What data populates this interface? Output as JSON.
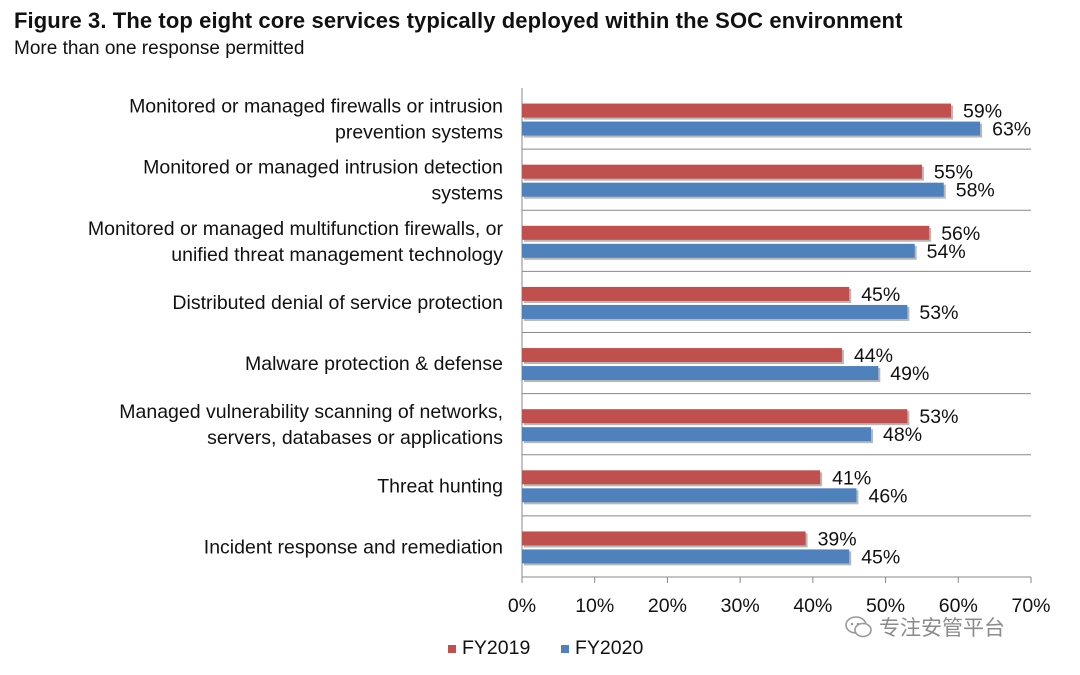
{
  "title": "Figure 3. The top eight core services typically deployed within the SOC environment",
  "subtitle": "More than one response permitted",
  "watermark": "专注安管平台",
  "colors": {
    "fy2019": "#c0504d",
    "fy2020": "#4f81bd"
  },
  "chart_data": {
    "type": "bar",
    "orientation": "horizontal",
    "title": "Figure 3. The top eight core services typically deployed within the SOC environment",
    "subtitle": "More than one response permitted",
    "categories": [
      [
        "Monitored or managed firewalls or intrusion",
        "prevention systems"
      ],
      [
        "Monitored or managed intrusion detection",
        "systems"
      ],
      [
        "Monitored or managed multifunction firewalls, or",
        "unified threat management technology"
      ],
      [
        "Distributed denial of service protection"
      ],
      [
        "Malware protection & defense"
      ],
      [
        "Managed vulnerability scanning of networks,",
        "servers, databases or applications"
      ],
      [
        "Threat hunting"
      ],
      [
        "Incident response and remediation"
      ]
    ],
    "series": [
      {
        "name": "FY2019",
        "values": [
          59,
          55,
          56,
          45,
          44,
          53,
          41,
          39
        ]
      },
      {
        "name": "FY2020",
        "values": [
          63,
          58,
          54,
          53,
          49,
          48,
          46,
          45
        ]
      }
    ],
    "xlim": [
      0,
      70
    ],
    "xticks": [
      "0%",
      "10%",
      "20%",
      "30%",
      "40%",
      "50%",
      "60%",
      "70%"
    ],
    "value_suffix": "%",
    "legend_position": "bottom",
    "grid": false
  }
}
